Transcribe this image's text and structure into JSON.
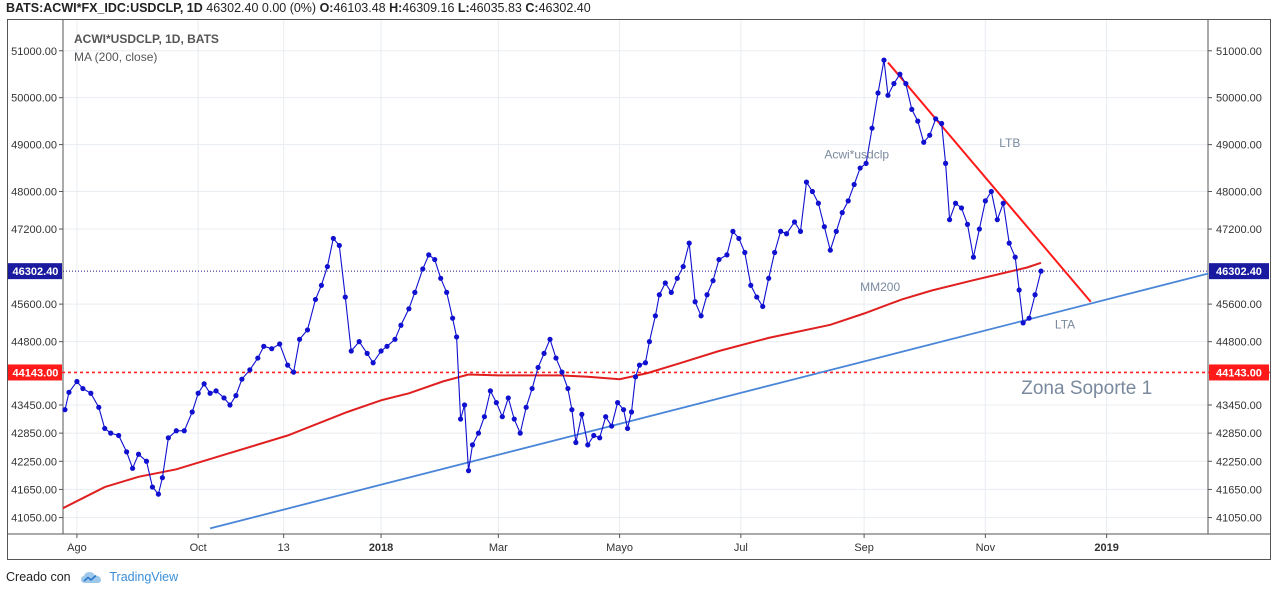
{
  "header": {
    "symbol": "BATS:ACWI*FX_IDC:USDCLP, 1D",
    "price": "46302.40",
    "change": "0.00 (0%)",
    "o_label": "O:",
    "o": "46103.48",
    "h_label": "H:",
    "h": "46309.16",
    "l_label": "L:",
    "l": "46035.83",
    "c_label": "C:",
    "c": "46302.40"
  },
  "legend": {
    "line1": "ACWI*USDCLP, 1D, BATS",
    "line2": "MA (200, close)"
  },
  "footer": {
    "created_with": "Creado con",
    "brand": "TradingView"
  },
  "colors": {
    "price": "#1010d0",
    "ma": "#e02020",
    "ltb": "#ff1a1a",
    "lta": "#4a86d8",
    "support": "#ff2020",
    "last_price_line": "#1a1a80",
    "grid": "#e8edf2",
    "annotation": "#7a8a9e"
  },
  "chart_data": {
    "type": "line",
    "title": "ACWI*USDCLP, 1D, BATS",
    "ylim": [
      40700,
      51400
    ],
    "y_ticks": [
      41050,
      41650,
      42250,
      42850,
      43450,
      44800,
      45600,
      47200,
      48000,
      49000,
      50000,
      51000
    ],
    "y_tick_labels": [
      "41050.00",
      "41650.00",
      "42250.00",
      "42850.00",
      "43450.00",
      "44800.00",
      "45600.00",
      "47200.00",
      "48000.00",
      "49000.00",
      "50000.00",
      "51000.00"
    ],
    "x_ticks": [
      {
        "label": "Ago",
        "date": "2017-08-01",
        "bold": false
      },
      {
        "label": "Oct",
        "date": "2017-10-01",
        "bold": false
      },
      {
        "label": "13",
        "date": "2017-11-13",
        "bold": false
      },
      {
        "label": "2018",
        "date": "2018-01-01",
        "bold": true
      },
      {
        "label": "Mar",
        "date": "2018-03-01",
        "bold": false
      },
      {
        "label": "Mayo",
        "date": "2018-05-01",
        "bold": false
      },
      {
        "label": "Jul",
        "date": "2018-07-01",
        "bold": false
      },
      {
        "label": "Sep",
        "date": "2018-09-01",
        "bold": false
      },
      {
        "label": "Nov",
        "date": "2018-11-01",
        "bold": false
      },
      {
        "label": "2019",
        "date": "2019-01-01",
        "bold": true
      }
    ],
    "x_range": [
      "2017-07-25",
      "2019-02-21"
    ],
    "grid": true,
    "series": [
      {
        "name": "ACWI*USDCLP",
        "points": [
          [
            "2017-07-26",
            43350
          ],
          [
            "2017-07-28",
            43720
          ],
          [
            "2017-08-01",
            43950
          ],
          [
            "2017-08-04",
            43800
          ],
          [
            "2017-08-08",
            43700
          ],
          [
            "2017-08-12",
            43400
          ],
          [
            "2017-08-15",
            42950
          ],
          [
            "2017-08-18",
            42850
          ],
          [
            "2017-08-22",
            42800
          ],
          [
            "2017-08-26",
            42450
          ],
          [
            "2017-08-29",
            42100
          ],
          [
            "2017-09-01",
            42400
          ],
          [
            "2017-09-05",
            42250
          ],
          [
            "2017-09-08",
            41700
          ],
          [
            "2017-09-11",
            41550
          ],
          [
            "2017-09-13",
            41900
          ],
          [
            "2017-09-16",
            42750
          ],
          [
            "2017-09-20",
            42900
          ],
          [
            "2017-09-24",
            42900
          ],
          [
            "2017-09-28",
            43300
          ],
          [
            "2017-10-01",
            43700
          ],
          [
            "2017-10-04",
            43900
          ],
          [
            "2017-10-07",
            43700
          ],
          [
            "2017-10-10",
            43750
          ],
          [
            "2017-10-14",
            43600
          ],
          [
            "2017-10-17",
            43450
          ],
          [
            "2017-10-20",
            43650
          ],
          [
            "2017-10-23",
            44000
          ],
          [
            "2017-10-27",
            44200
          ],
          [
            "2017-10-31",
            44450
          ],
          [
            "2017-11-03",
            44700
          ],
          [
            "2017-11-07",
            44650
          ],
          [
            "2017-11-11",
            44750
          ],
          [
            "2017-11-15",
            44300
          ],
          [
            "2017-11-18",
            44150
          ],
          [
            "2017-11-21",
            44850
          ],
          [
            "2017-11-25",
            45050
          ],
          [
            "2017-11-29",
            45700
          ],
          [
            "2017-12-02",
            46000
          ],
          [
            "2017-12-05",
            46400
          ],
          [
            "2017-12-08",
            47000
          ],
          [
            "2017-12-11",
            46850
          ],
          [
            "2017-12-14",
            45750
          ],
          [
            "2017-12-17",
            44600
          ],
          [
            "2017-12-21",
            44800
          ],
          [
            "2017-12-25",
            44550
          ],
          [
            "2017-12-28",
            44350
          ],
          [
            "2018-01-01",
            44600
          ],
          [
            "2018-01-04",
            44700
          ],
          [
            "2018-01-08",
            44850
          ],
          [
            "2018-01-11",
            45150
          ],
          [
            "2018-01-15",
            45500
          ],
          [
            "2018-01-18",
            45850
          ],
          [
            "2018-01-22",
            46350
          ],
          [
            "2018-01-25",
            46650
          ],
          [
            "2018-01-28",
            46550
          ],
          [
            "2018-01-31",
            46150
          ],
          [
            "2018-02-03",
            45850
          ],
          [
            "2018-02-06",
            45300
          ],
          [
            "2018-02-08",
            44900
          ],
          [
            "2018-02-10",
            43150
          ],
          [
            "2018-02-12",
            43450
          ],
          [
            "2018-02-14",
            42050
          ],
          [
            "2018-02-16",
            42600
          ],
          [
            "2018-02-19",
            42850
          ],
          [
            "2018-02-22",
            43200
          ],
          [
            "2018-02-25",
            43750
          ],
          [
            "2018-02-28",
            43500
          ],
          [
            "2018-03-03",
            43200
          ],
          [
            "2018-03-06",
            43600
          ],
          [
            "2018-03-09",
            43150
          ],
          [
            "2018-03-12",
            42850
          ],
          [
            "2018-03-15",
            43400
          ],
          [
            "2018-03-18",
            43800
          ],
          [
            "2018-03-21",
            44250
          ],
          [
            "2018-03-24",
            44550
          ],
          [
            "2018-03-27",
            44850
          ],
          [
            "2018-03-30",
            44450
          ],
          [
            "2018-04-02",
            44150
          ],
          [
            "2018-04-05",
            43800
          ],
          [
            "2018-04-07",
            43350
          ],
          [
            "2018-04-09",
            42650
          ],
          [
            "2018-04-12",
            43250
          ],
          [
            "2018-04-15",
            42600
          ],
          [
            "2018-04-18",
            42800
          ],
          [
            "2018-04-21",
            42750
          ],
          [
            "2018-04-24",
            43200
          ],
          [
            "2018-04-27",
            43000
          ],
          [
            "2018-04-30",
            43500
          ],
          [
            "2018-05-03",
            43350
          ],
          [
            "2018-05-05",
            42950
          ],
          [
            "2018-05-07",
            43300
          ],
          [
            "2018-05-09",
            44050
          ],
          [
            "2018-05-11",
            44300
          ],
          [
            "2018-05-14",
            44350
          ],
          [
            "2018-05-16",
            44800
          ],
          [
            "2018-05-19",
            45350
          ],
          [
            "2018-05-21",
            45800
          ],
          [
            "2018-05-24",
            46050
          ],
          [
            "2018-05-27",
            45850
          ],
          [
            "2018-05-30",
            46150
          ],
          [
            "2018-06-02",
            46400
          ],
          [
            "2018-06-05",
            46900
          ],
          [
            "2018-06-08",
            45650
          ],
          [
            "2018-06-11",
            45350
          ],
          [
            "2018-06-14",
            45800
          ],
          [
            "2018-06-17",
            46100
          ],
          [
            "2018-06-20",
            46550
          ],
          [
            "2018-06-24",
            46650
          ],
          [
            "2018-06-27",
            47150
          ],
          [
            "2018-06-30",
            47000
          ],
          [
            "2018-07-03",
            46700
          ],
          [
            "2018-07-06",
            46000
          ],
          [
            "2018-07-09",
            45750
          ],
          [
            "2018-07-12",
            45550
          ],
          [
            "2018-07-15",
            46150
          ],
          [
            "2018-07-18",
            46700
          ],
          [
            "2018-07-21",
            47150
          ],
          [
            "2018-07-24",
            47100
          ],
          [
            "2018-07-28",
            47350
          ],
          [
            "2018-07-31",
            47150
          ],
          [
            "2018-08-03",
            48200
          ],
          [
            "2018-08-06",
            48000
          ],
          [
            "2018-08-09",
            47750
          ],
          [
            "2018-08-12",
            47250
          ],
          [
            "2018-08-15",
            46750
          ],
          [
            "2018-08-18",
            47150
          ],
          [
            "2018-08-21",
            47550
          ],
          [
            "2018-08-24",
            47800
          ],
          [
            "2018-08-27",
            48150
          ],
          [
            "2018-08-30",
            48500
          ],
          [
            "2018-09-02",
            48600
          ],
          [
            "2018-09-05",
            49350
          ],
          [
            "2018-09-08",
            50100
          ],
          [
            "2018-09-11",
            50800
          ],
          [
            "2018-09-13",
            50050
          ],
          [
            "2018-09-16",
            50300
          ],
          [
            "2018-09-19",
            50500
          ],
          [
            "2018-09-22",
            50300
          ],
          [
            "2018-09-25",
            49750
          ],
          [
            "2018-09-28",
            49500
          ],
          [
            "2018-10-01",
            49050
          ],
          [
            "2018-10-04",
            49200
          ],
          [
            "2018-10-07",
            49550
          ],
          [
            "2018-10-10",
            49450
          ],
          [
            "2018-10-12",
            48600
          ],
          [
            "2018-10-14",
            47400
          ],
          [
            "2018-10-17",
            47750
          ],
          [
            "2018-10-20",
            47650
          ],
          [
            "2018-10-23",
            47300
          ],
          [
            "2018-10-26",
            46600
          ],
          [
            "2018-10-29",
            47200
          ],
          [
            "2018-11-01",
            47800
          ],
          [
            "2018-11-04",
            48000
          ],
          [
            "2018-11-07",
            47400
          ],
          [
            "2018-11-10",
            47750
          ],
          [
            "2018-11-13",
            46900
          ],
          [
            "2018-11-16",
            46600
          ],
          [
            "2018-11-18",
            45900
          ],
          [
            "2018-11-20",
            45200
          ],
          [
            "2018-11-23",
            45300
          ],
          [
            "2018-11-26",
            45800
          ],
          [
            "2018-11-29",
            46303
          ]
        ]
      },
      {
        "name": "MA (200, close)",
        "points": [
          [
            "2017-07-25",
            41250
          ],
          [
            "2017-08-15",
            41700
          ],
          [
            "2017-09-01",
            41920
          ],
          [
            "2017-09-20",
            42080
          ],
          [
            "2017-10-15",
            42400
          ],
          [
            "2017-11-15",
            42800
          ],
          [
            "2017-12-15",
            43300
          ],
          [
            "2018-01-01",
            43550
          ],
          [
            "2018-01-15",
            43700
          ],
          [
            "2018-02-01",
            43950
          ],
          [
            "2018-02-14",
            44100
          ],
          [
            "2018-03-01",
            44080
          ],
          [
            "2018-04-01",
            44080
          ],
          [
            "2018-04-15",
            44050
          ],
          [
            "2018-05-01",
            44000
          ],
          [
            "2018-05-15",
            44130
          ],
          [
            "2018-06-01",
            44350
          ],
          [
            "2018-06-20",
            44600
          ],
          [
            "2018-07-15",
            44880
          ],
          [
            "2018-08-15",
            45160
          ],
          [
            "2018-09-01",
            45400
          ],
          [
            "2018-09-20",
            45700
          ],
          [
            "2018-10-05",
            45890
          ],
          [
            "2018-10-25",
            46100
          ],
          [
            "2018-11-10",
            46260
          ],
          [
            "2018-11-22",
            46380
          ],
          [
            "2018-11-29",
            46480
          ]
        ]
      }
    ],
    "last_price": 46302.4,
    "last_price_label": "46302.40",
    "support_level": 44143,
    "support_label": "44143.00",
    "trendlines": [
      {
        "name": "LTB",
        "from": [
          "2018-09-13",
          50750
        ],
        "to": [
          "2018-12-24",
          45650
        ]
      },
      {
        "name": "LTA",
        "from": [
          "2017-10-07",
          40820
        ],
        "to": [
          "2019-02-21",
          46250
        ]
      }
    ],
    "annotations": [
      {
        "text": "LTB",
        "date": "2018-11-08",
        "value": 48950
      },
      {
        "text": "Acwi*usdclp",
        "date": "2018-08-12",
        "value": 48700
      },
      {
        "text": "MM200",
        "date": "2018-08-30",
        "value": 45880
      },
      {
        "text": "LTA",
        "date": "2018-12-06",
        "value": 45080
      },
      {
        "text": "Zona Soporte 1",
        "date": "2018-12-22",
        "value": 43680
      }
    ]
  }
}
